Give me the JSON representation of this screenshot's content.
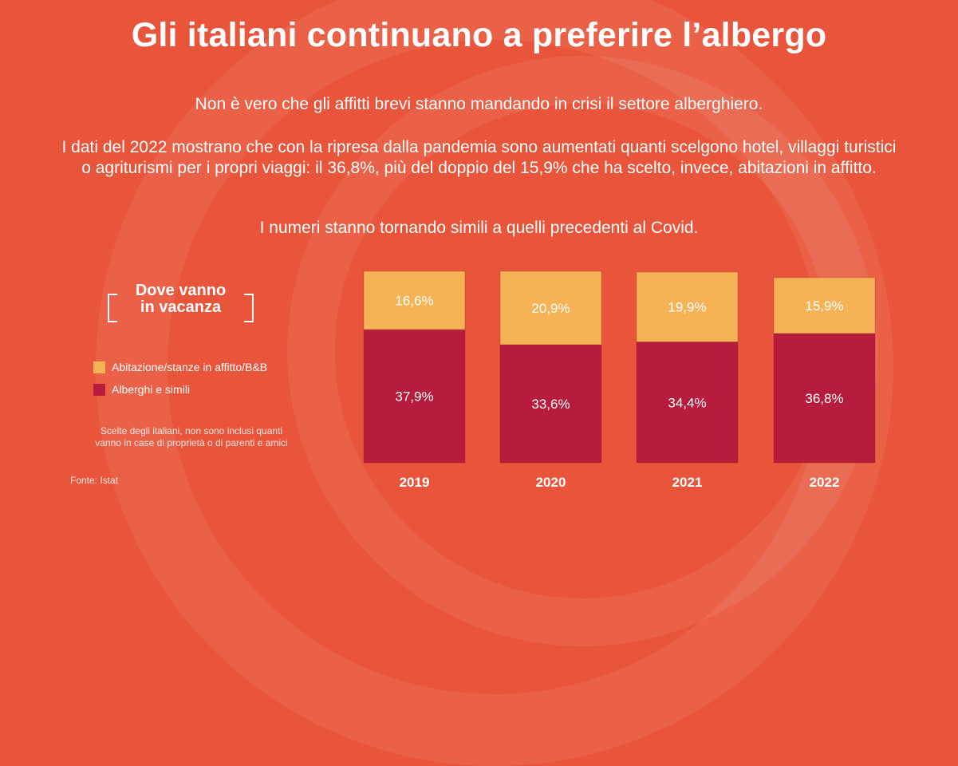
{
  "title": "Gli italiani continuano a preferire l’albergo",
  "intro": {
    "p1": "Non è vero che gli affitti brevi stanno mandando in crisi il settore alberghiero.",
    "p2": "I dati del 2022 mostrano che con la ripresa dalla pandemia sono aumentati quanti scelgono hotel, villaggi turistici o agriturismi per i propri viaggi: il 36,8%, più del doppio del 15,9% che ha scelto, invece, abitazioni in affitto.",
    "p3": "I numeri stanno tornando simili a quelli precedenti al Covid."
  },
  "legend": {
    "title_line1": "Dove vanno",
    "title_line2": "in vacanza",
    "items": [
      {
        "label": "Abitazione/stanze in affitto/B&B",
        "color": "#f6b356"
      },
      {
        "label": "Alberghi e simili",
        "color": "#b71c3c"
      }
    ]
  },
  "footnote_line1": "Scelte degli italiani, non sono inclusi quanti",
  "footnote_line2": "vanno in case di proprietà o di parenti e amici",
  "source": "Fonte: Istat",
  "colors": {
    "background": "#e9553a",
    "rent": "#f6b356",
    "hotel": "#b71c3c"
  },
  "chart_data": {
    "type": "bar",
    "stacked": true,
    "categories": [
      "2019",
      "2020",
      "2021",
      "2022"
    ],
    "series": [
      {
        "name": "Alberghi e simili",
        "values": [
          37.9,
          33.6,
          34.4,
          36.8
        ],
        "labels": [
          "37,9%",
          "33,6%",
          "34,4%",
          "36,8%"
        ],
        "color": "#b71c3c"
      },
      {
        "name": "Abitazione/stanze in affitto/B&B",
        "values": [
          16.6,
          20.9,
          19.9,
          15.9
        ],
        "labels": [
          "16,6%",
          "20,9%",
          "19,9%",
          "15,9%"
        ],
        "color": "#f6b356"
      }
    ],
    "title": "",
    "xlabel": "",
    "ylabel": "",
    "ylim": [
      0,
      54.5
    ],
    "grid": false
  }
}
